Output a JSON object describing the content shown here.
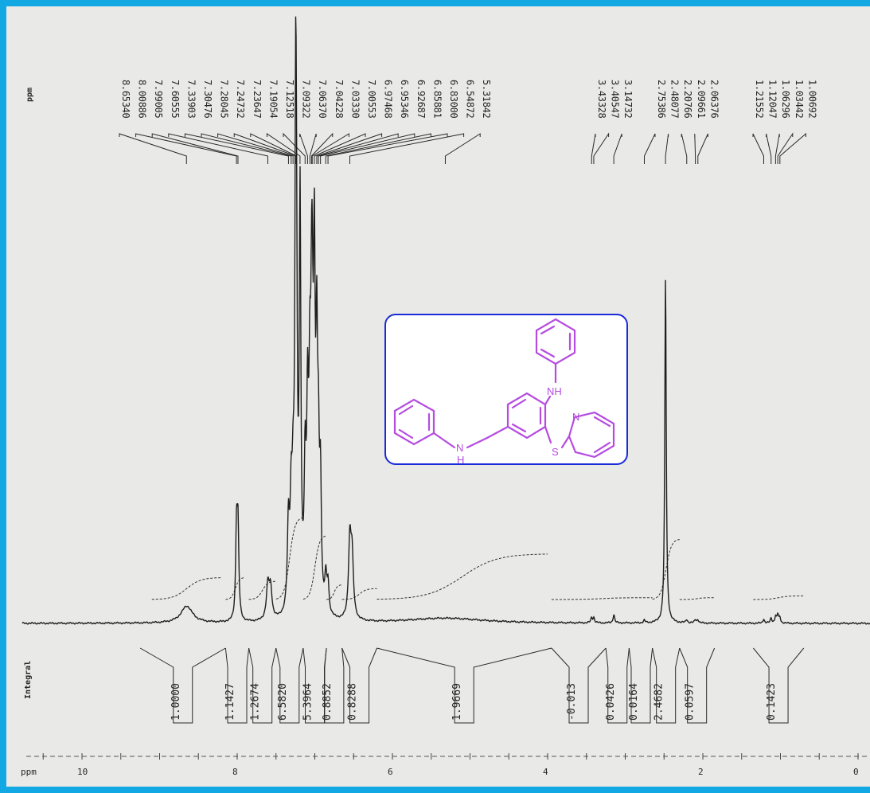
{
  "chart_data": {
    "type": "line",
    "x_axis": {
      "unit_label": "ppm",
      "reversed": true,
      "xlim": [
        10.3,
        0
      ],
      "ticks": [
        "10",
        "8",
        "6",
        "4",
        "2",
        "0"
      ],
      "tick_values": [
        10,
        8,
        6,
        4,
        2,
        0
      ]
    },
    "peak_list_label": "ppm",
    "peak_labels": [
      {
        "text": "8.65340",
        "ppm": 8.6534
      },
      {
        "text": "8.00886",
        "ppm": 8.00886
      },
      {
        "text": "7.99005",
        "ppm": 7.99005
      },
      {
        "text": "7.60555",
        "ppm": 7.60555
      },
      {
        "text": "7.33903",
        "ppm": 7.33903
      },
      {
        "text": "7.30476",
        "ppm": 7.30476
      },
      {
        "text": "7.28045",
        "ppm": 7.28045
      },
      {
        "text": "7.24732",
        "ppm": 7.24732
      },
      {
        "text": "7.23647",
        "ppm": 7.23647
      },
      {
        "text": "7.19054",
        "ppm": 7.19054
      },
      {
        "text": "7.12518",
        "ppm": 7.12518
      },
      {
        "text": "7.09322",
        "ppm": 7.09322
      },
      {
        "text": "7.06370",
        "ppm": 7.0637
      },
      {
        "text": "7.04228",
        "ppm": 7.04228
      },
      {
        "text": "7.03330",
        "ppm": 7.0333
      },
      {
        "text": "7.00553",
        "ppm": 7.00553
      },
      {
        "text": "6.97468",
        "ppm": 6.97468
      },
      {
        "text": "6.95346",
        "ppm": 6.95346
      },
      {
        "text": "6.92687",
        "ppm": 6.92687
      },
      {
        "text": "6.85881",
        "ppm": 6.85881
      },
      {
        "text": "6.83000",
        "ppm": 6.83
      },
      {
        "text": "6.54872",
        "ppm": 6.54872
      },
      {
        "text": "5.31842",
        "ppm": 5.31842
      },
      {
        "text": "3.43328",
        "ppm": 3.43328
      },
      {
        "text": "3.40547",
        "ppm": 3.40547
      },
      {
        "text": "3.14732",
        "ppm": 3.14732
      },
      {
        "text": "2.75386",
        "ppm": 2.75386
      },
      {
        "text": "2.48077",
        "ppm": 2.48077
      },
      {
        "text": "2.20766",
        "ppm": 2.20766
      },
      {
        "text": "2.09661",
        "ppm": 2.09661
      },
      {
        "text": "2.06376",
        "ppm": 2.06376
      },
      {
        "text": "1.21552",
        "ppm": 1.21552
      },
      {
        "text": "1.12047",
        "ppm": 1.12047
      },
      {
        "text": "1.06296",
        "ppm": 1.06296
      },
      {
        "text": "1.03442",
        "ppm": 1.03442
      },
      {
        "text": "1.00692",
        "ppm": 1.00692
      }
    ],
    "integral_label": "Integral",
    "integrals": [
      {
        "text": "1.0000",
        "from": 9.25,
        "to": 8.15
      },
      {
        "text": "1.1427",
        "from": 8.15,
        "to": 7.85
      },
      {
        "text": "1.2674",
        "from": 7.85,
        "to": 7.5
      },
      {
        "text": "6.5820",
        "from": 7.5,
        "to": 7.15
      },
      {
        "text": "5.3964",
        "from": 7.15,
        "to": 6.85
      },
      {
        "text": "0.8852",
        "from": 6.85,
        "to": 6.65
      },
      {
        "text": "0.8288",
        "from": 6.65,
        "to": 6.2
      },
      {
        "text": "1.9669",
        "from": 6.2,
        "to": 3.95
      },
      {
        "text": "-0.013",
        "from": 3.95,
        "to": 3.25
      },
      {
        "text": "0.0426",
        "from": 3.25,
        "to": 2.95
      },
      {
        "text": "0.0164",
        "from": 2.95,
        "to": 2.65
      },
      {
        "text": "2.4682",
        "from": 2.65,
        "to": 2.3
      },
      {
        "text": "0.0597",
        "from": 2.3,
        "to": 1.85
      },
      {
        "text": "0.1423",
        "from": 1.35,
        "to": 0.7
      }
    ],
    "peaks": [
      {
        "ppm": 8.65,
        "height": 0.04,
        "width": 0.09
      },
      {
        "ppm": 8.009,
        "height": 0.21,
        "width": 0.013
      },
      {
        "ppm": 7.99,
        "height": 0.21,
        "width": 0.013
      },
      {
        "ppm": 7.605,
        "height": 0.08,
        "width": 0.022
      },
      {
        "ppm": 7.57,
        "height": 0.07,
        "width": 0.022
      },
      {
        "ppm": 7.34,
        "height": 0.2,
        "width": 0.016
      },
      {
        "ppm": 7.305,
        "height": 0.22,
        "width": 0.016
      },
      {
        "ppm": 7.28,
        "height": 0.22,
        "width": 0.016
      },
      {
        "ppm": 7.247,
        "height": 1.0,
        "width": 0.012
      },
      {
        "ppm": 7.236,
        "height": 0.55,
        "width": 0.012
      },
      {
        "ppm": 7.19,
        "height": 0.95,
        "width": 0.012
      },
      {
        "ppm": 7.125,
        "height": 0.3,
        "width": 0.014
      },
      {
        "ppm": 7.093,
        "height": 0.42,
        "width": 0.014
      },
      {
        "ppm": 7.064,
        "height": 0.42,
        "width": 0.014
      },
      {
        "ppm": 7.042,
        "height": 0.38,
        "width": 0.014
      },
      {
        "ppm": 7.033,
        "height": 0.42,
        "width": 0.014
      },
      {
        "ppm": 7.006,
        "height": 0.74,
        "width": 0.013
      },
      {
        "ppm": 6.975,
        "height": 0.55,
        "width": 0.013
      },
      {
        "ppm": 6.953,
        "height": 0.3,
        "width": 0.013
      },
      {
        "ppm": 6.927,
        "height": 0.28,
        "width": 0.013
      },
      {
        "ppm": 6.859,
        "height": 0.08,
        "width": 0.015
      },
      {
        "ppm": 6.83,
        "height": 0.07,
        "width": 0.015
      },
      {
        "ppm": 6.549,
        "height": 0.18,
        "width": 0.02
      },
      {
        "ppm": 6.52,
        "height": 0.14,
        "width": 0.02
      },
      {
        "ppm": 5.32,
        "height": 0.012,
        "width": 0.6
      },
      {
        "ppm": 3.433,
        "height": 0.012,
        "width": 0.012
      },
      {
        "ppm": 3.405,
        "height": 0.012,
        "width": 0.012
      },
      {
        "ppm": 3.147,
        "height": 0.02,
        "width": 0.012
      },
      {
        "ppm": 2.754,
        "height": 0.006,
        "width": 0.012
      },
      {
        "ppm": 2.481,
        "height": 0.82,
        "width": 0.011
      },
      {
        "ppm": 2.208,
        "height": 0.008,
        "width": 0.012
      },
      {
        "ppm": 2.097,
        "height": 0.008,
        "width": 0.012
      },
      {
        "ppm": 2.064,
        "height": 0.008,
        "width": 0.012
      },
      {
        "ppm": 1.216,
        "height": 0.01,
        "width": 0.012
      },
      {
        "ppm": 1.12,
        "height": 0.012,
        "width": 0.012
      },
      {
        "ppm": 1.063,
        "height": 0.015,
        "width": 0.012
      },
      {
        "ppm": 1.034,
        "height": 0.02,
        "width": 0.012
      },
      {
        "ppm": 1.007,
        "height": 0.012,
        "width": 0.012
      }
    ],
    "integral_curves": [
      {
        "from": 9.1,
        "to": 8.2,
        "rise": 0.12
      },
      {
        "from": 8.15,
        "to": 7.9,
        "rise": 0.12
      },
      {
        "from": 7.85,
        "to": 7.5,
        "rise": 0.1
      },
      {
        "from": 7.5,
        "to": 7.15,
        "rise": 0.45
      },
      {
        "from": 7.15,
        "to": 6.85,
        "rise": 0.35
      },
      {
        "from": 6.85,
        "to": 6.65,
        "rise": 0.08
      },
      {
        "from": 6.65,
        "to": 6.2,
        "rise": 0.06
      },
      {
        "from": 6.2,
        "to": 4.0,
        "rise": 0.25
      },
      {
        "from": 3.95,
        "to": 2.65,
        "rise": 0.01
      },
      {
        "from": 2.65,
        "to": 2.3,
        "rise": 0.33
      },
      {
        "from": 2.3,
        "to": 1.85,
        "rise": 0.01
      },
      {
        "from": 1.35,
        "to": 0.7,
        "rise": 0.02
      }
    ]
  },
  "structure": {
    "atoms": {
      "nh_top": "NH",
      "nh_left_n": "N",
      "nh_left_h": "H",
      "pyridine_n": "N",
      "sulfur": "S"
    },
    "color": "#b54ce0",
    "box_color": "#1a2bd8"
  },
  "colors": {
    "frame": "#12a8e4",
    "background": "#e9e9e7",
    "ink": "#1e1e1e"
  }
}
